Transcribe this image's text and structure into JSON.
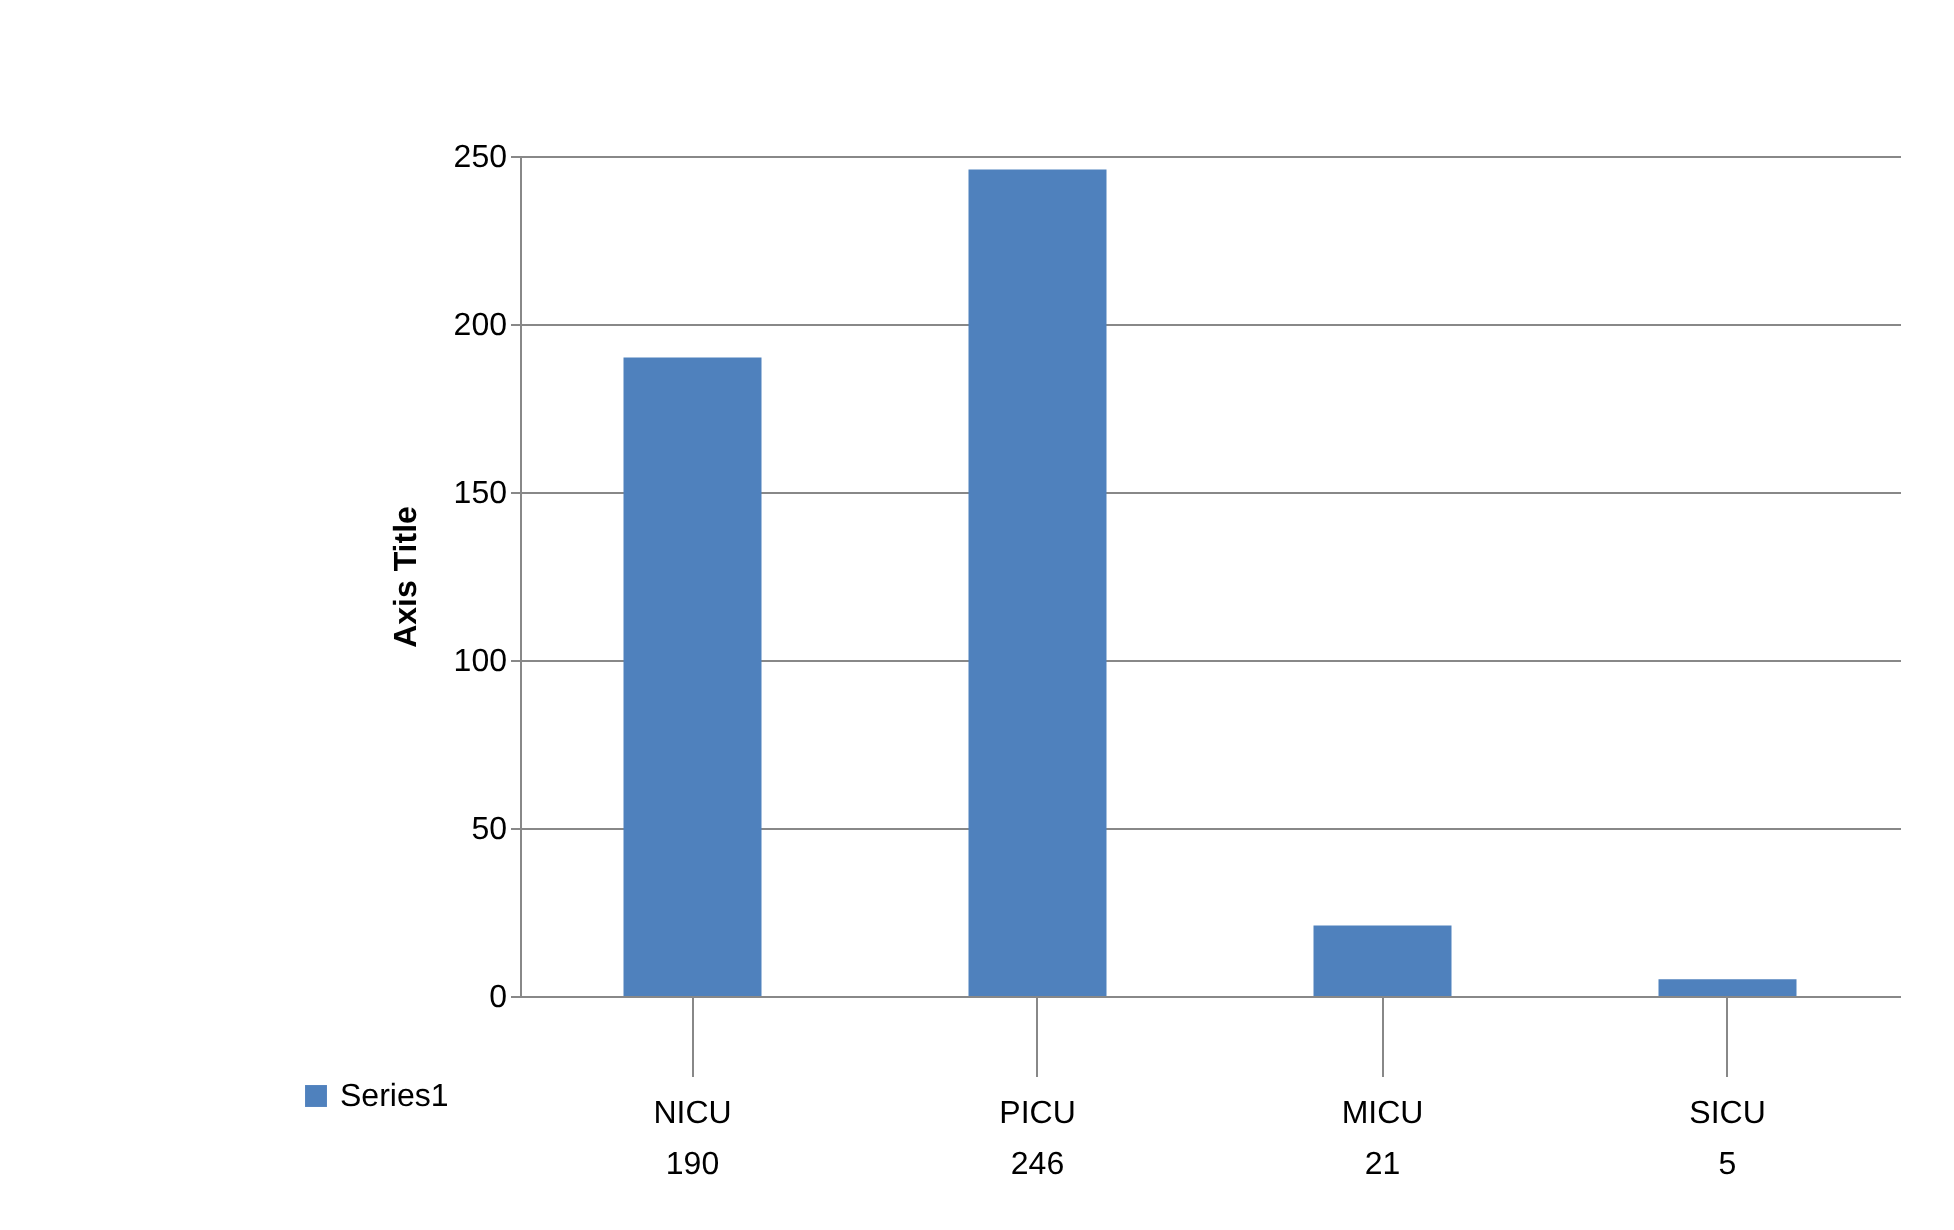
{
  "chart_data": {
    "type": "bar",
    "ylabel": "Axis Title",
    "categories": [
      "NICU",
      "PICU",
      "MICU",
      "SICU"
    ],
    "series": [
      {
        "name": "Series1",
        "color": "#4f81bd",
        "values": [
          190,
          246,
          21,
          5
        ]
      }
    ],
    "ylim": [
      0,
      250
    ],
    "yticks": [
      0,
      50,
      100,
      150,
      200,
      250
    ],
    "grid": "y",
    "data_labels": true,
    "legend": "bottom left"
  }
}
